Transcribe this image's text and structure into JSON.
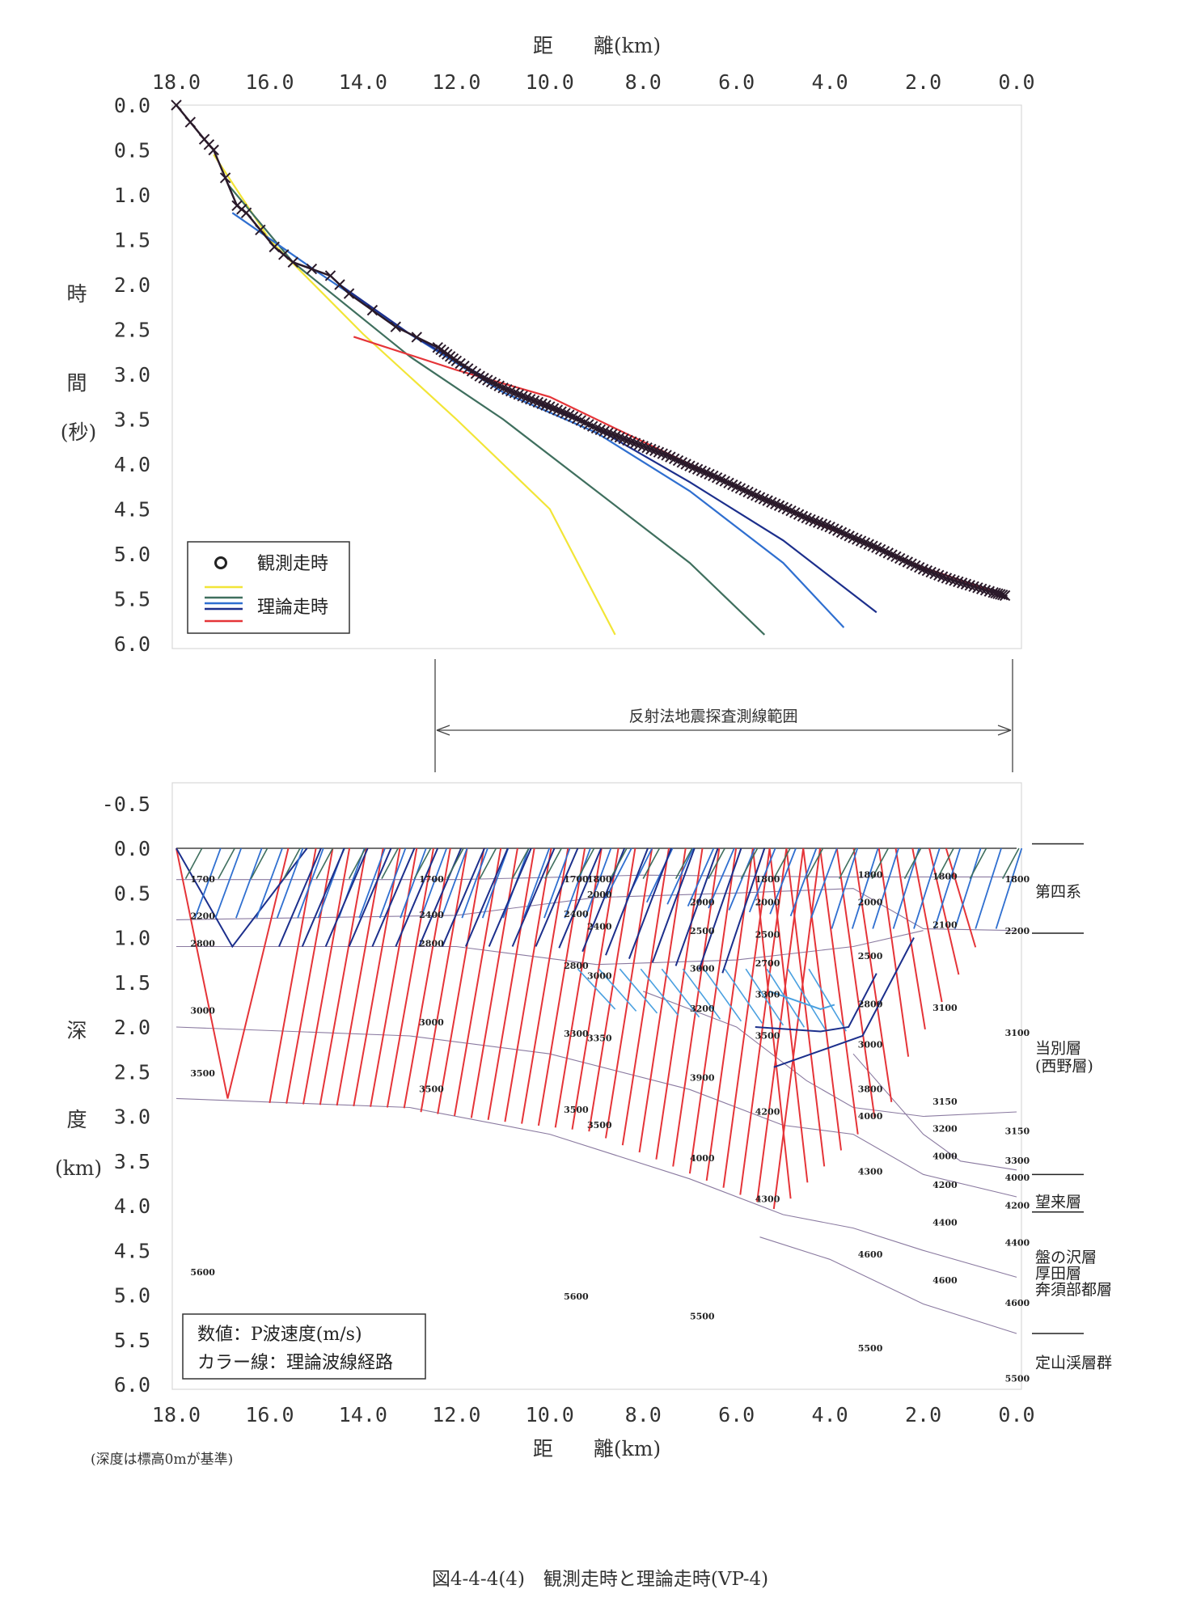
{
  "caption": "図4-4-4(4)　観測走時と理論走時(VP-4)",
  "colors": {
    "yellow": "#f2e537",
    "darkgreen": "#3f6f5e",
    "blue": "#2f6fd0",
    "lightblue": "#4aa0e0",
    "navy": "#1c2f8c",
    "red": "#e53438",
    "observed": "#2a1a2a",
    "boundary": "#8a7aa0"
  },
  "chart_data": [
    {
      "type": "line",
      "xlabel": "距　　離(km)",
      "ylabel_chars": [
        "時",
        "間",
        "(秒)"
      ],
      "xlim": [
        18.0,
        0.0
      ],
      "ylim": [
        0.0,
        6.0
      ],
      "xticks": [
        "18.0",
        "16.0",
        "14.0",
        "12.0",
        "10.0",
        "8.0",
        "6.0",
        "4.0",
        "2.0",
        "0.0"
      ],
      "yticks": [
        "0.0",
        "0.5",
        "1.0",
        "1.5",
        "2.0",
        "2.5",
        "3.0",
        "3.5",
        "4.0",
        "4.5",
        "5.0",
        "5.5",
        "6.0"
      ],
      "legend": {
        "observed": "観測走時",
        "theoretical": "理論走時",
        "position": "bottom-left"
      },
      "observed": [
        [
          18.0,
          0.0
        ],
        [
          17.4,
          0.38
        ],
        [
          17.2,
          0.5
        ],
        [
          16.7,
          1.12
        ],
        [
          16.5,
          1.2
        ],
        [
          15.9,
          1.58
        ],
        [
          15.5,
          1.75
        ],
        [
          14.7,
          1.9
        ],
        [
          14.3,
          2.1
        ],
        [
          13.3,
          2.47
        ],
        [
          12.4,
          2.7
        ],
        [
          12.0,
          2.85
        ],
        [
          11.5,
          3.02
        ],
        [
          11.0,
          3.15
        ],
        [
          10.5,
          3.26
        ],
        [
          10.0,
          3.36
        ],
        [
          9.5,
          3.47
        ],
        [
          9.0,
          3.6
        ],
        [
          8.5,
          3.7
        ],
        [
          8.0,
          3.8
        ],
        [
          7.5,
          3.9
        ],
        [
          7.0,
          4.02
        ],
        [
          6.5,
          4.13
        ],
        [
          6.0,
          4.25
        ],
        [
          5.5,
          4.37
        ],
        [
          5.0,
          4.48
        ],
        [
          4.5,
          4.6
        ],
        [
          4.0,
          4.7
        ],
        [
          3.5,
          4.82
        ],
        [
          3.0,
          4.93
        ],
        [
          2.5,
          5.05
        ],
        [
          2.0,
          5.17
        ],
        [
          1.5,
          5.27
        ],
        [
          1.0,
          5.35
        ],
        [
          0.5,
          5.43
        ],
        [
          0.2,
          5.47
        ]
      ],
      "series": [
        {
          "color": "yellow",
          "points": [
            [
              17.2,
              0.55
            ],
            [
              16.0,
              1.5
            ],
            [
              14.0,
              2.55
            ],
            [
              12.0,
              3.5
            ],
            [
              10.0,
              4.5
            ],
            [
              8.6,
              5.9
            ]
          ]
        },
        {
          "color": "darkgreen",
          "points": [
            [
              16.9,
              0.88
            ],
            [
              15.5,
              1.75
            ],
            [
              13.0,
              2.8
            ],
            [
              11.0,
              3.5
            ],
            [
              9.0,
              4.3
            ],
            [
              7.0,
              5.1
            ],
            [
              5.4,
              5.9
            ]
          ]
        },
        {
          "color": "blue",
          "points": [
            [
              16.8,
              1.2
            ],
            [
              15.0,
              1.85
            ],
            [
              13.0,
              2.55
            ],
            [
              11.0,
              3.2
            ],
            [
              9.0,
              3.65
            ],
            [
              7.0,
              4.3
            ],
            [
              5.0,
              5.1
            ],
            [
              3.7,
              5.82
            ]
          ]
        },
        {
          "color": "navy",
          "points": [
            [
              14.5,
              2.0
            ],
            [
              13.0,
              2.55
            ],
            [
              12.0,
              2.85
            ],
            [
              11.0,
              3.15
            ],
            [
              9.0,
              3.6
            ],
            [
              7.0,
              4.2
            ],
            [
              5.0,
              4.85
            ],
            [
              3.0,
              5.65
            ]
          ]
        },
        {
          "color": "red",
          "points": [
            [
              14.2,
              2.58
            ],
            [
              12.0,
              2.95
            ],
            [
              10.0,
              3.25
            ],
            [
              8.0,
              3.75
            ],
            [
              6.0,
              4.25
            ],
            [
              4.0,
              4.72
            ],
            [
              2.0,
              5.15
            ],
            [
              0.3,
              5.45
            ]
          ]
        }
      ]
    },
    {
      "type": "line",
      "xlabel": "距　　離(km)",
      "ylabel_chars": [
        "深",
        "度",
        "(km)"
      ],
      "xlim": [
        18.0,
        0.0
      ],
      "ylim": [
        -0.7,
        6.0
      ],
      "xticks": [
        "18.0",
        "16.0",
        "14.0",
        "12.0",
        "10.0",
        "8.0",
        "6.0",
        "4.0",
        "2.0",
        "0.0"
      ],
      "yticks": [
        "-0.5",
        "0.0",
        "0.5",
        "1.0",
        "1.5",
        "2.0",
        "2.5",
        "3.0",
        "3.5",
        "4.0",
        "4.5",
        "5.0",
        "5.5",
        "6.0"
      ],
      "survey_range": {
        "label": "反射法地震探査測線範囲",
        "from": 12.9,
        "to": 0.1
      },
      "legend_lines": [
        "数値：P波速度(m/s)",
        "カラー線：理論波線経路"
      ],
      "note": "(深度は標高0mが基準)",
      "layer_names": [
        {
          "text": "第四系",
          "depth": 0.48
        },
        {
          "text": "当別層",
          "depth": 2.23
        },
        {
          "text": "(西野層)",
          "depth": 2.43
        },
        {
          "text": "望来層",
          "depth": 3.95
        },
        {
          "text": "盤の沢層",
          "depth": 4.57
        },
        {
          "text": "厚田層",
          "depth": 4.75
        },
        {
          "text": "奔須部都層",
          "depth": 4.93
        },
        {
          "text": "定山渓層群",
          "depth": 5.75
        }
      ],
      "layer_ticks": [
        {
          "depth": -0.05,
          "x1": 0.2,
          "x2": -1.6
        },
        {
          "depth": 0.95,
          "x1": 0.2,
          "x2": -1.6
        },
        {
          "depth": 3.65,
          "x1": 0.2,
          "x2": -1.6
        },
        {
          "depth": 4.07,
          "x1": 0.2,
          "x2": -1.6
        },
        {
          "depth": 5.43,
          "x1": 0.2,
          "x2": -1.6
        }
      ],
      "boundaries": [
        [
          [
            18.0,
            0.0
          ],
          [
            0.0,
            0.0
          ]
        ],
        [
          [
            18.0,
            0.35
          ],
          [
            12.0,
            0.35
          ],
          [
            8.0,
            0.3
          ],
          [
            4.0,
            0.32
          ],
          [
            0.0,
            0.32
          ]
        ],
        [
          [
            18.0,
            0.8
          ],
          [
            12.0,
            0.75
          ],
          [
            9.0,
            0.55
          ],
          [
            6.0,
            0.5
          ],
          [
            3.5,
            0.45
          ],
          [
            2.0,
            0.9
          ],
          [
            0.0,
            0.92
          ]
        ],
        [
          [
            18.0,
            1.1
          ],
          [
            12.0,
            1.1
          ],
          [
            9.0,
            1.3
          ],
          [
            6.0,
            1.25
          ],
          [
            3.5,
            1.1
          ],
          [
            2.0,
            0.92
          ]
        ],
        [
          [
            18.0,
            2.0
          ],
          [
            13.0,
            2.1
          ],
          [
            10.0,
            2.3
          ],
          [
            7.0,
            2.7
          ],
          [
            5.0,
            3.1
          ],
          [
            3.5,
            3.2
          ],
          [
            2.0,
            3.65
          ],
          [
            0.0,
            3.9
          ]
        ],
        [
          [
            18.0,
            2.8
          ],
          [
            13.0,
            2.9
          ],
          [
            10.0,
            3.2
          ],
          [
            7.0,
            3.7
          ],
          [
            5.0,
            4.1
          ],
          [
            3.5,
            4.25
          ],
          [
            2.0,
            4.5
          ],
          [
            0.0,
            4.8
          ]
        ],
        [
          [
            8.0,
            1.6
          ],
          [
            6.0,
            2.0
          ],
          [
            4.5,
            2.6
          ],
          [
            3.5,
            2.9
          ],
          [
            2.0,
            3.0
          ],
          [
            0.0,
            2.95
          ]
        ],
        [
          [
            3.5,
            2.3
          ],
          [
            2.0,
            3.2
          ],
          [
            1.2,
            3.5
          ],
          [
            0.0,
            3.6
          ]
        ],
        [
          [
            5.5,
            4.35
          ],
          [
            4.0,
            4.6
          ],
          [
            2.0,
            5.1
          ],
          [
            0.0,
            5.43
          ]
        ]
      ],
      "velocity_labels": [
        {
          "v": "1700",
          "x": 17.7,
          "d": 0.38
        },
        {
          "v": "2200",
          "x": 17.7,
          "d": 0.79
        },
        {
          "v": "2800",
          "x": 17.7,
          "d": 1.1
        },
        {
          "v": "3000",
          "x": 17.7,
          "d": 1.85
        },
        {
          "v": "3500",
          "x": 17.7,
          "d": 2.55
        },
        {
          "v": "5600",
          "x": 17.7,
          "d": 4.78
        },
        {
          "v": "1700",
          "x": 12.8,
          "d": 0.38
        },
        {
          "v": "2400",
          "x": 12.8,
          "d": 0.78
        },
        {
          "v": "2800",
          "x": 12.8,
          "d": 1.1
        },
        {
          "v": "3000",
          "x": 12.8,
          "d": 1.98
        },
        {
          "v": "3500",
          "x": 12.8,
          "d": 2.73
        },
        {
          "v": "1700",
          "x": 9.7,
          "d": 0.38
        },
        {
          "v": "1800",
          "x": 9.2,
          "d": 0.38
        },
        {
          "v": "2000",
          "x": 9.2,
          "d": 0.55
        },
        {
          "v": "2400",
          "x": 9.7,
          "d": 0.77
        },
        {
          "v": "2400",
          "x": 9.2,
          "d": 0.91
        },
        {
          "v": "2800",
          "x": 9.7,
          "d": 1.35
        },
        {
          "v": "3000",
          "x": 9.2,
          "d": 1.46
        },
        {
          "v": "3300",
          "x": 9.7,
          "d": 2.11
        },
        {
          "v": "3350",
          "x": 9.2,
          "d": 2.16
        },
        {
          "v": "3500",
          "x": 9.7,
          "d": 2.96
        },
        {
          "v": "3500",
          "x": 9.2,
          "d": 3.13
        },
        {
          "v": "2000",
          "x": 7.0,
          "d": 0.64
        },
        {
          "v": "2500",
          "x": 7.0,
          "d": 0.96
        },
        {
          "v": "3000",
          "x": 7.0,
          "d": 1.38
        },
        {
          "v": "3200",
          "x": 7.0,
          "d": 1.83
        },
        {
          "v": "3900",
          "x": 7.0,
          "d": 2.6
        },
        {
          "v": "4000",
          "x": 7.0,
          "d": 3.5
        },
        {
          "v": "1800",
          "x": 5.6,
          "d": 0.38
        },
        {
          "v": "2000",
          "x": 5.6,
          "d": 0.64
        },
        {
          "v": "2500",
          "x": 5.6,
          "d": 1.0
        },
        {
          "v": "2700",
          "x": 5.6,
          "d": 1.32
        },
        {
          "v": "3300",
          "x": 5.6,
          "d": 1.67
        },
        {
          "v": "3500",
          "x": 5.6,
          "d": 2.13
        },
        {
          "v": "4200",
          "x": 5.6,
          "d": 2.98
        },
        {
          "v": "4300",
          "x": 5.6,
          "d": 3.96
        },
        {
          "v": "1800",
          "x": 3.4,
          "d": 0.33
        },
        {
          "v": "2000",
          "x": 3.4,
          "d": 0.64
        },
        {
          "v": "2500",
          "x": 3.4,
          "d": 1.24
        },
        {
          "v": "2800",
          "x": 3.4,
          "d": 1.78
        },
        {
          "v": "3000",
          "x": 3.4,
          "d": 2.23
        },
        {
          "v": "3800",
          "x": 3.4,
          "d": 2.73
        },
        {
          "v": "4000",
          "x": 3.4,
          "d": 3.03
        },
        {
          "v": "4300",
          "x": 3.4,
          "d": 3.65
        },
        {
          "v": "4600",
          "x": 3.4,
          "d": 4.58
        },
        {
          "v": "5500",
          "x": 3.4,
          "d": 5.63
        },
        {
          "v": "1800",
          "x": 1.8,
          "d": 0.35
        },
        {
          "v": "2100",
          "x": 1.8,
          "d": 0.89
        },
        {
          "v": "3100",
          "x": 1.8,
          "d": 1.82
        },
        {
          "v": "3150",
          "x": 1.8,
          "d": 2.87
        },
        {
          "v": "3200",
          "x": 1.8,
          "d": 3.17
        },
        {
          "v": "4000",
          "x": 1.8,
          "d": 3.48
        },
        {
          "v": "4200",
          "x": 1.8,
          "d": 3.8
        },
        {
          "v": "4400",
          "x": 1.8,
          "d": 4.22
        },
        {
          "v": "4600",
          "x": 1.8,
          "d": 4.87
        },
        {
          "v": "1800",
          "x": 0.25,
          "d": 0.38
        },
        {
          "v": "2200",
          "x": 0.25,
          "d": 0.96
        },
        {
          "v": "3100",
          "x": 0.25,
          "d": 2.1
        },
        {
          "v": "3150",
          "x": 0.25,
          "d": 3.2
        },
        {
          "v": "3300",
          "x": 0.25,
          "d": 3.53
        },
        {
          "v": "4000",
          "x": 0.25,
          "d": 3.72
        },
        {
          "v": "4200",
          "x": 0.25,
          "d": 4.03
        },
        {
          "v": "4400",
          "x": 0.25,
          "d": 4.45
        },
        {
          "v": "4600",
          "x": 0.25,
          "d": 5.12
        },
        {
          "v": "5500",
          "x": 0.25,
          "d": 5.97
        },
        {
          "v": "5600",
          "x": 9.7,
          "d": 5.05
        },
        {
          "v": "5500",
          "x": 7.0,
          "d": 5.27
        }
      ]
    }
  ]
}
